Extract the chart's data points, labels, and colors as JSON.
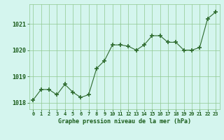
{
  "x": [
    0,
    1,
    2,
    3,
    4,
    5,
    6,
    7,
    8,
    9,
    10,
    11,
    12,
    13,
    14,
    15,
    16,
    17,
    18,
    19,
    20,
    21,
    22,
    23
  ],
  "y": [
    1018.1,
    1018.5,
    1018.5,
    1018.3,
    1018.7,
    1018.4,
    1018.2,
    1018.3,
    1019.3,
    1019.6,
    1020.2,
    1020.2,
    1020.15,
    1020.0,
    1020.2,
    1020.55,
    1020.55,
    1020.3,
    1020.3,
    1020.0,
    1020.0,
    1020.1,
    1021.2,
    1021.45
  ],
  "line_color": "#2d6a2d",
  "marker_color": "#2d6a2d",
  "bg_color": "#d4f5ee",
  "grid_color": "#90c890",
  "xlabel": "Graphe pression niveau de la mer (hPa)",
  "xlabel_color": "#1a5c1a",
  "tick_color": "#1a5c1a",
  "ylim": [
    1017.75,
    1021.75
  ],
  "yticks": [
    1018,
    1019,
    1020,
    1021
  ],
  "fig_bg": "#d4f5ee"
}
